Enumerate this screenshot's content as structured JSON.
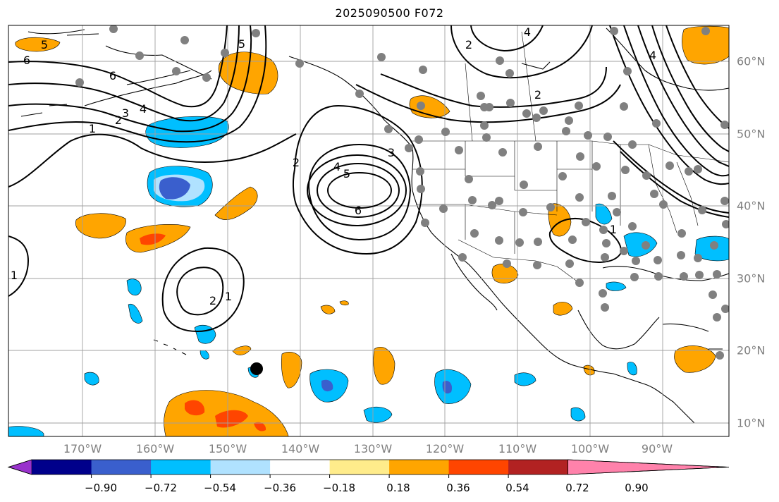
{
  "title": "2025090500 F072",
  "lon_ticks": [
    "170°W",
    "160°W",
    "150°W",
    "140°W",
    "130°W",
    "120°W",
    "110°W",
    "100°W",
    "90°W"
  ],
  "lat_ticks": [
    "60°N",
    "50°N",
    "40°N",
    "30°N",
    "20°N",
    "10°N"
  ],
  "colorbar": {
    "tick_labels": [
      "−0.90",
      "−0.72",
      "−0.54",
      "−0.36",
      "−0.18",
      "0.18",
      "0.36",
      "0.54",
      "0.72",
      "0.90"
    ],
    "colors": [
      "#9932cc",
      "#00008b",
      "#3a5fcd",
      "#00bfff",
      "#b0e2ff",
      "#ffffff",
      "#ffec8b",
      "#ffa500",
      "#ff4500",
      "#b22222",
      "#ff82ab"
    ]
  },
  "contour_labels": [
    "5",
    "6",
    "6",
    "5",
    "4",
    "3",
    "2",
    "1",
    "2",
    "3",
    "4",
    "5",
    "6",
    "4",
    "2",
    "2",
    "1",
    "2",
    "1",
    "1",
    "4"
  ],
  "colors": {
    "contour": "#000000",
    "coast": "#000000",
    "grid": "#a0a0a0",
    "station": "#808080",
    "marker": "#000000"
  }
}
